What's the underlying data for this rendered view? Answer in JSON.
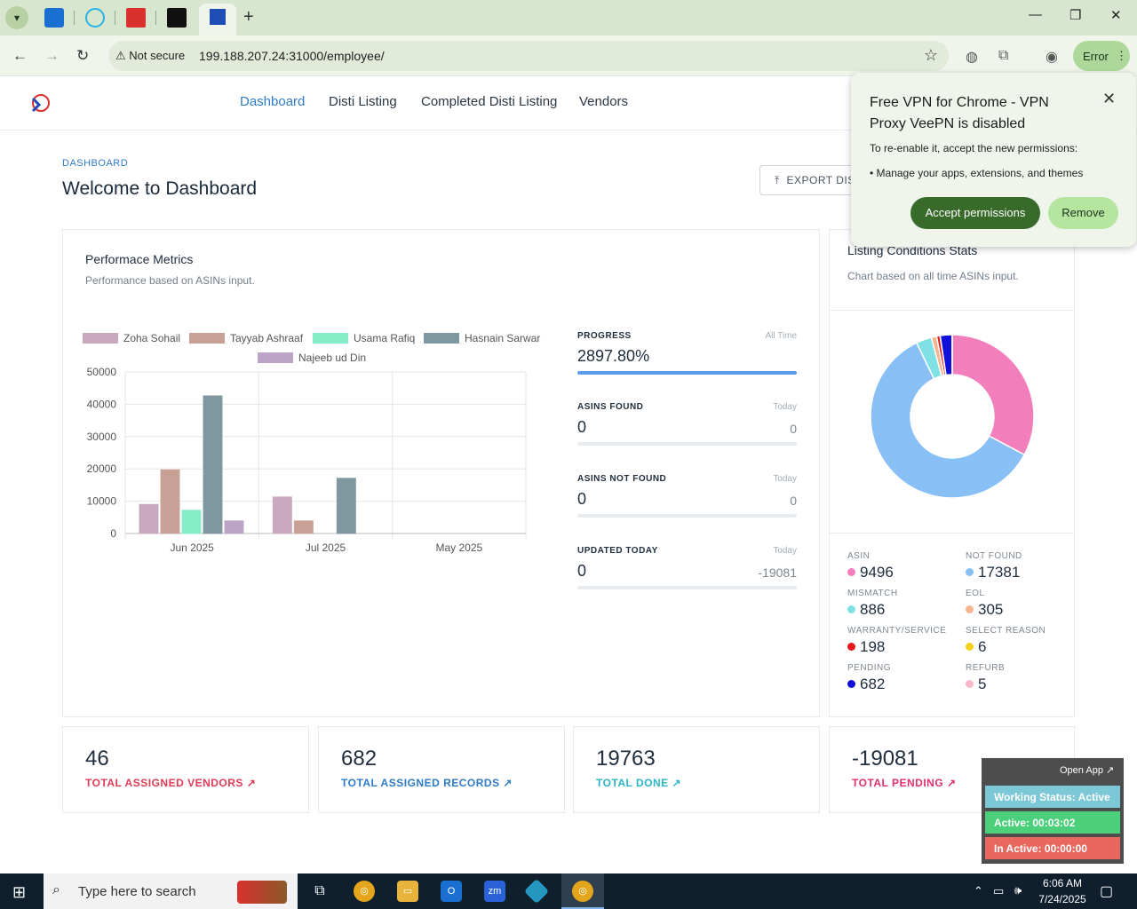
{
  "browser": {
    "url": "199.188.207.24:31000/employee/",
    "security_label": "Not secure",
    "error_label": "Error",
    "tab_favicons": [
      "ms-icon",
      "copyright-icon",
      "ex-icon",
      "amazon-icon",
      "df-icon"
    ]
  },
  "site": {
    "nav": [
      {
        "label": "Dashboard",
        "active": true
      },
      {
        "label": "Disti Listing",
        "active": false
      },
      {
        "label": "Completed Disti Listing",
        "active": false
      },
      {
        "label": "Vendors",
        "active": false
      }
    ],
    "breadcrumb": "DASHBOARD",
    "title": "Welcome to Dashboard",
    "export_label": "EXPORT DISTI"
  },
  "performance": {
    "title": "Performace Metrics",
    "subtitle": "Performance based on ASINs input.",
    "metrics": [
      {
        "label": "PROGRESS",
        "period": "All Time",
        "value": "2897.80%",
        "side": "",
        "fill": 1.0
      },
      {
        "label": "ASINS FOUND",
        "period": "Today",
        "value": "0",
        "side": "0",
        "fill": 0
      },
      {
        "label": "ASINS NOT FOUND",
        "period": "Today",
        "value": "0",
        "side": "0",
        "fill": 0
      },
      {
        "label": "UPDATED TODAY",
        "period": "Today",
        "value": "0",
        "side": "-19081",
        "fill": 0
      }
    ]
  },
  "chart_data": [
    {
      "type": "bar",
      "categories": [
        "Jun 2025",
        "Jul 2025",
        "May 2025"
      ],
      "ylim": [
        0,
        50000
      ],
      "yticks": [
        0,
        10000,
        20000,
        30000,
        40000,
        50000
      ],
      "series": [
        {
          "name": "Zoha Sohail",
          "color": "#c9a7bd",
          "values": [
            9000,
            11300,
            0
          ]
        },
        {
          "name": "Tayyab Ashraaf",
          "color": "#c7a096",
          "values": [
            19700,
            3900,
            0
          ]
        },
        {
          "name": "Usama Rafiq",
          "color": "#86ecc5",
          "values": [
            7200,
            0,
            0
          ]
        },
        {
          "name": "Hasnain Sarwar",
          "color": "#7f979f",
          "values": [
            42600,
            17100,
            0
          ]
        },
        {
          "name": "Najeeb ud Din",
          "color": "#bca4c6",
          "values": [
            3900,
            0,
            0
          ]
        }
      ]
    },
    {
      "type": "pie",
      "title": "Listing Conditions Stats",
      "subtitle": "Chart based on all time ASINs input.",
      "slices": [
        {
          "name": "ASIN",
          "value": 9496,
          "color": "#f27fbc"
        },
        {
          "name": "NOT FOUND",
          "value": 17381,
          "color": "#88bff5"
        },
        {
          "name": "MISMATCH",
          "value": 886,
          "color": "#7fe1e3"
        },
        {
          "name": "EOL",
          "value": 305,
          "color": "#f4b48e"
        },
        {
          "name": "WARRANTY/SERVICE",
          "value": 198,
          "color": "#e81818"
        },
        {
          "name": "SELECT REASON",
          "value": 6,
          "color": "#f2d01c"
        },
        {
          "name": "PENDING",
          "value": 682,
          "color": "#1010d8"
        },
        {
          "name": "REFURB",
          "value": 5,
          "color": "#f9b7c8"
        }
      ]
    }
  ],
  "totals": [
    {
      "value": "46",
      "label": "TOTAL ASSIGNED VENDORS",
      "color": "#e03b55"
    },
    {
      "value": "682",
      "label": "TOTAL ASSIGNED RECORDS",
      "color": "#2e7bc8"
    },
    {
      "value": "19763",
      "label": "TOTAL DONE",
      "color": "#2bb5c8"
    },
    {
      "value": "-19081",
      "label": "TOTAL PENDING",
      "color": "#e0306e"
    }
  ],
  "popup": {
    "title": "Free VPN for Chrome - VPN Proxy VeePN is disabled",
    "text": "To re-enable it, accept the new permissions:",
    "bullet": "• Manage your apps, extensions, and themes",
    "accept": "Accept permissions",
    "remove": "Remove"
  },
  "widget": {
    "open_app": "Open App ↗",
    "working": "Working Status: Active",
    "active": "Active: 00:03:02",
    "inactive": "In Active: 00:00:00"
  },
  "taskbar": {
    "search_placeholder": "Type here to search",
    "time": "6:06 AM",
    "date": "7/24/2025"
  }
}
